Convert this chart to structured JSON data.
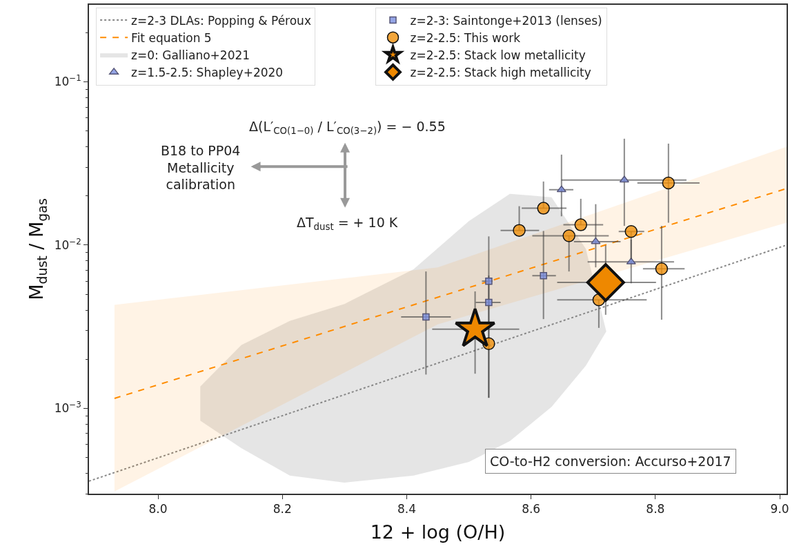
{
  "chart_data": {
    "type": "scatter",
    "xlabel": "12 + log (O/H)",
    "ylabel": "M$_{dust}$ / M$_{gas}$",
    "xlim": [
      7.889,
      9.011
    ],
    "xticks": [
      {
        "value": 8.0,
        "label": "8.0"
      },
      {
        "value": 8.2,
        "label": "8.2"
      },
      {
        "value": 8.4,
        "label": "8.4"
      },
      {
        "value": 8.6,
        "label": "8.6"
      },
      {
        "value": 8.8,
        "label": "8.8"
      },
      {
        "value": 9.0,
        "label": "9.0"
      }
    ],
    "ylim": [
      0.0003,
      0.296
    ],
    "log": "y",
    "yticks": [
      {
        "value": 0.001,
        "label": "10$^{−3}$"
      },
      {
        "value": 0.01,
        "label": "10$^{−2}$"
      },
      {
        "value": 0.1,
        "label": "10$^{−1}$"
      }
    ],
    "legend": "top left",
    "series": [
      {
        "name": "z=2-3 DLAs: Popping & Péroux",
        "type": "line",
        "line_style": "dotted",
        "color": "#888888",
        "x": [
          7.889,
          9.011
        ],
        "values": [
          0.000358,
          0.01
        ]
      },
      {
        "name": "Fit equation 5",
        "type": "line",
        "line_style": "dashed",
        "color": "#ff8c00",
        "x": [
          7.93,
          8.45,
          9.011
        ],
        "values": [
          0.00115,
          0.00479,
          0.0222
        ],
        "lower": [
          0.00031,
          0.00327,
          0.0137
        ],
        "upper": [
          0.0043,
          0.0073,
          0.04
        ]
      },
      {
        "name": "z=0: Galliano+2021",
        "type": "area",
        "color": "#cccccc",
        "x": [
          8.068,
          8.134,
          8.212,
          8.3,
          8.411,
          8.5,
          8.566,
          8.633,
          8.688,
          8.721
        ],
        "values": [
          null,
          null,
          null,
          null,
          null,
          null,
          null,
          null,
          null,
          null
        ],
        "lower": [
          0.00084,
          0.00057,
          0.000387,
          0.000351,
          0.000387,
          0.00047,
          0.00063,
          0.00102,
          0.00182,
          0.00296
        ],
        "upper": [
          0.00136,
          0.00244,
          0.00343,
          0.00436,
          0.0071,
          0.014,
          0.0206,
          0.0196,
          0.0095,
          0.00296
        ]
      },
      {
        "name": "z=1.5-2.5: Shapley+2020",
        "type": "scatter",
        "marker": "triangle",
        "color": "#7b8ee0",
        "x": [
          8.649,
          8.75,
          8.704,
          8.761
        ],
        "values": [
          0.0218,
          0.025,
          0.0105,
          0.00788
        ],
        "errors": [
          [
            0.015,
            0.0358
          ],
          [
            0.0131,
            0.0448
          ],
          [
            0.0073,
            0.0178
          ],
          [
            0.00583,
            0.0108
          ]
        ],
        "xerrors": [
          [
            8.629,
            8.668
          ],
          [
            8.649,
            8.85
          ],
          [
            8.669,
            8.744
          ],
          [
            8.691,
            8.83
          ]
        ]
      },
      {
        "name": "z=2-3: Saintonge+2013 (lenses)",
        "type": "scatter",
        "marker": "square",
        "color": "#7b8ee0",
        "x": [
          8.431,
          8.532,
          8.532,
          8.62
        ],
        "values": [
          0.00363,
          0.00601,
          0.00445,
          0.0065
        ],
        "errors": [
          [
            0.00161,
            0.00689
          ],
          [
            0.0035,
            0.0113
          ],
          [
            0.00116,
            0.0065
          ],
          [
            0.00352,
            0.0122
          ]
        ],
        "xerrors": [
          [
            8.391,
            8.471
          ],
          [
            8.521,
            8.538
          ],
          [
            8.511,
            8.551
          ],
          [
            8.602,
            8.64
          ]
        ]
      },
      {
        "name": "z=2-2.5: This work",
        "type": "scatter",
        "marker": "circle",
        "color": "#f0900a",
        "x": [
          8.581,
          8.62,
          8.661,
          8.68,
          8.761,
          8.709,
          8.821,
          8.81,
          8.532
        ],
        "values": [
          0.0123,
          0.0168,
          0.0114,
          0.0133,
          0.0121,
          0.00462,
          0.024,
          0.00716,
          0.00249
        ],
        "errors": [
          [
            0.0123,
            0.0173
          ],
          [
            0.0168,
            0.0245
          ],
          [
            0.00689,
            0.0114
          ],
          [
            0.0133,
            0.0192
          ],
          [
            0.0082,
            0.0121
          ],
          [
            0.00311,
            0.00462
          ],
          [
            0.0137,
            0.0418
          ],
          [
            0.00349,
            0.0131
          ],
          [
            0.00116,
            0.0035
          ]
        ],
        "xerrors": [
          [
            8.551,
            8.613
          ],
          [
            8.585,
            8.657
          ],
          [
            8.602,
            8.725
          ],
          [
            8.652,
            8.716
          ],
          [
            8.741,
            8.782
          ],
          [
            8.642,
            8.786
          ],
          [
            8.771,
            8.871
          ],
          [
            8.78,
            8.847
          ],
          null
        ]
      },
      {
        "name": "z=2-2.5: Stack low metallicity",
        "type": "scatter",
        "marker": "star",
        "color": "#ee8800",
        "x": [
          8.51
        ],
        "values": [
          0.00305
        ],
        "errors": [
          [
            0.00163,
            0.0052
          ]
        ],
        "xerrors": [
          [
            8.441,
            8.581
          ]
        ]
      },
      {
        "name": "z=2-2.5: Stack high metallicity",
        "type": "scatter",
        "marker": "diamond",
        "color": "#ee8800",
        "x": [
          8.72
        ],
        "values": [
          0.0059
        ],
        "errors": [
          [
            0.00374,
            0.00995
          ]
        ],
        "xerrors": [
          [
            8.642,
            8.801
          ]
        ]
      }
    ],
    "annotations": [
      "Δ(L′$_{CO(1−0)}$ / L′$_{CO(3−2)}$) = − 0.55",
      "B18 to PP04\nMetallicity\ncalibration",
      "ΔT$_{dust}$ = + 10 K",
      "CO-to-H2 conversion: Accurso+2017"
    ]
  }
}
